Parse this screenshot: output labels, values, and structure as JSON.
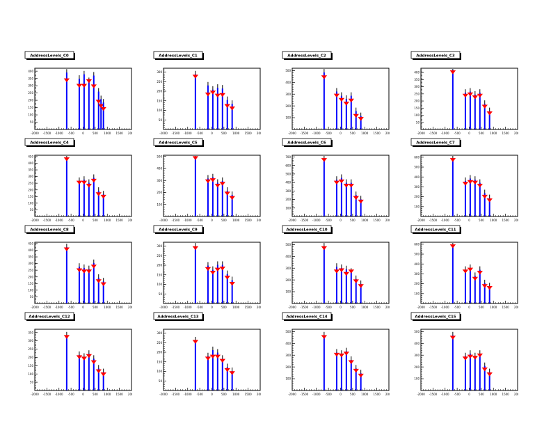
{
  "canvas": {
    "background": "#ffffff"
  },
  "style": {
    "spike_color": "#0000ff",
    "marker_color": "#ff0000",
    "whisker_color": "#000000",
    "frame_color": "#000000",
    "title_fill": "#ffffff",
    "title_shadow": "#000000"
  },
  "axes": {
    "xlim": [
      -2000,
      2000
    ],
    "x_tick_labels": [
      "-2000",
      "-1500",
      "-1000",
      "-500",
      "0",
      "500",
      "1000",
      "1500",
      "2000"
    ]
  },
  "chart_data": [
    {
      "type": "bar",
      "title": "AddressLevels_C0",
      "xlabel": "",
      "ylabel": "",
      "ylim": [
        0,
        420
      ],
      "y_ticks": [
        400,
        350,
        300,
        250,
        200,
        150,
        100,
        50
      ],
      "spikes": [
        {
          "x": -680,
          "y": 390,
          "m": 336
        },
        {
          "x": -160,
          "y": 348,
          "m": 298
        },
        {
          "x": 40,
          "y": 378,
          "m": 298
        },
        {
          "x": 240,
          "y": 332,
          "m": 330
        },
        {
          "x": 440,
          "y": 370,
          "m": 294
        },
        {
          "x": 640,
          "y": 260,
          "m": 189
        },
        {
          "x": 740,
          "y": 208,
          "m": 160
        },
        {
          "x": 840,
          "y": 185,
          "m": 139
        }
      ]
    },
    {
      "type": "bar",
      "title": "AddressLevels_C1",
      "xlabel": "",
      "ylabel": "",
      "ylim": [
        0,
        320
      ],
      "y_ticks": [
        300,
        250,
        200,
        150,
        100,
        50
      ],
      "spikes": [
        {
          "x": -680,
          "y": 288,
          "m": 275
        },
        {
          "x": -160,
          "y": 230,
          "m": 182
        },
        {
          "x": 40,
          "y": 208,
          "m": 192
        },
        {
          "x": 240,
          "y": 218,
          "m": 176
        },
        {
          "x": 440,
          "y": 214,
          "m": 179
        },
        {
          "x": 640,
          "y": 154,
          "m": 122
        },
        {
          "x": 840,
          "y": 134,
          "m": 109
        }
      ]
    },
    {
      "type": "bar",
      "title": "AddressLevels_C2",
      "xlabel": "",
      "ylabel": "",
      "ylim": [
        0,
        520
      ],
      "y_ticks": [
        500,
        400,
        300,
        200,
        100
      ],
      "spikes": [
        {
          "x": -680,
          "y": 484,
          "m": 442
        },
        {
          "x": -160,
          "y": 322,
          "m": 286
        },
        {
          "x": 40,
          "y": 286,
          "m": 250
        },
        {
          "x": 240,
          "y": 260,
          "m": 218
        },
        {
          "x": 440,
          "y": 286,
          "m": 244
        },
        {
          "x": 640,
          "y": 156,
          "m": 114
        },
        {
          "x": 840,
          "y": 114,
          "m": 88
        }
      ]
    },
    {
      "type": "bar",
      "title": "AddressLevels_C3",
      "xlabel": "",
      "ylabel": "",
      "ylim": [
        0,
        430
      ],
      "y_ticks": [
        400,
        350,
        300,
        250,
        200,
        150,
        100,
        50
      ],
      "spikes": [
        {
          "x": -680,
          "y": 417,
          "m": 400
        },
        {
          "x": -160,
          "y": 258,
          "m": 236
        },
        {
          "x": 40,
          "y": 266,
          "m": 245
        },
        {
          "x": 240,
          "y": 245,
          "m": 224
        },
        {
          "x": 440,
          "y": 258,
          "m": 236
        },
        {
          "x": 640,
          "y": 180,
          "m": 159
        },
        {
          "x": 840,
          "y": 129,
          "m": 112
        }
      ]
    },
    {
      "type": "bar",
      "title": "AddressLevels_C4",
      "xlabel": "",
      "ylabel": "",
      "ylim": [
        0,
        460
      ],
      "y_ticks": [
        450,
        400,
        350,
        300,
        250,
        200,
        150,
        100,
        50
      ],
      "spikes": [
        {
          "x": -680,
          "y": 437,
          "m": 428
        },
        {
          "x": -160,
          "y": 267,
          "m": 253
        },
        {
          "x": 40,
          "y": 276,
          "m": 253
        },
        {
          "x": 240,
          "y": 253,
          "m": 230
        },
        {
          "x": 440,
          "y": 290,
          "m": 267
        },
        {
          "x": 640,
          "y": 193,
          "m": 166
        },
        {
          "x": 840,
          "y": 166,
          "m": 147
        }
      ]
    },
    {
      "type": "bar",
      "title": "AddressLevels_C5",
      "xlabel": "",
      "ylabel": "",
      "ylim": [
        0,
        510
      ],
      "y_ticks": [
        500,
        400,
        300,
        200,
        100
      ],
      "spikes": [
        {
          "x": -680,
          "y": 495,
          "m": 485
        },
        {
          "x": -160,
          "y": 316,
          "m": 291
        },
        {
          "x": 40,
          "y": 326,
          "m": 301
        },
        {
          "x": 240,
          "y": 281,
          "m": 255
        },
        {
          "x": 440,
          "y": 296,
          "m": 270
        },
        {
          "x": 640,
          "y": 214,
          "m": 189
        },
        {
          "x": 840,
          "y": 179,
          "m": 153
        }
      ]
    },
    {
      "type": "bar",
      "title": "AddressLevels_C6",
      "xlabel": "",
      "ylabel": "",
      "ylim": [
        0,
        720
      ],
      "y_ticks": [
        700,
        600,
        500,
        400,
        300,
        200,
        100
      ],
      "spikes": [
        {
          "x": -680,
          "y": 684,
          "m": 662
        },
        {
          "x": -160,
          "y": 432,
          "m": 396
        },
        {
          "x": 40,
          "y": 454,
          "m": 410
        },
        {
          "x": 240,
          "y": 396,
          "m": 360
        },
        {
          "x": 440,
          "y": 396,
          "m": 360
        },
        {
          "x": 640,
          "y": 252,
          "m": 216
        },
        {
          "x": 840,
          "y": 202,
          "m": 173
        }
      ]
    },
    {
      "type": "bar",
      "title": "AddressLevels_C7",
      "xlabel": "",
      "ylabel": "",
      "ylim": [
        0,
        620
      ],
      "y_ticks": [
        600,
        500,
        400,
        300,
        200,
        100
      ],
      "spikes": [
        {
          "x": -680,
          "y": 589,
          "m": 570
        },
        {
          "x": -160,
          "y": 360,
          "m": 329
        },
        {
          "x": 40,
          "y": 384,
          "m": 347
        },
        {
          "x": 240,
          "y": 372,
          "m": 341
        },
        {
          "x": 440,
          "y": 341,
          "m": 310
        },
        {
          "x": 640,
          "y": 236,
          "m": 198
        },
        {
          "x": 840,
          "y": 186,
          "m": 161
        }
      ]
    },
    {
      "type": "bar",
      "title": "AddressLevels_C8",
      "xlabel": "",
      "ylabel": "",
      "ylim": [
        0,
        460
      ],
      "y_ticks": [
        450,
        400,
        350,
        300,
        250,
        200,
        150,
        100,
        50
      ],
      "spikes": [
        {
          "x": -680,
          "y": 423,
          "m": 405
        },
        {
          "x": -160,
          "y": 276,
          "m": 248
        },
        {
          "x": 40,
          "y": 267,
          "m": 239
        },
        {
          "x": 240,
          "y": 258,
          "m": 239
        },
        {
          "x": 440,
          "y": 304,
          "m": 276
        },
        {
          "x": 640,
          "y": 193,
          "m": 166
        },
        {
          "x": 840,
          "y": 166,
          "m": 143
        }
      ]
    },
    {
      "type": "bar",
      "title": "AddressLevels_C9",
      "xlabel": "",
      "ylabel": "",
      "ylim": [
        0,
        320
      ],
      "y_ticks": [
        300,
        250,
        200,
        150,
        100,
        50
      ],
      "spikes": [
        {
          "x": -680,
          "y": 298,
          "m": 288
        },
        {
          "x": -160,
          "y": 198,
          "m": 179
        },
        {
          "x": 40,
          "y": 176,
          "m": 160
        },
        {
          "x": 240,
          "y": 202,
          "m": 176
        },
        {
          "x": 440,
          "y": 202,
          "m": 182
        },
        {
          "x": 640,
          "y": 154,
          "m": 134
        },
        {
          "x": 840,
          "y": 122,
          "m": 102
        }
      ]
    },
    {
      "type": "bar",
      "title": "AddressLevels_C10",
      "xlabel": "",
      "ylabel": "",
      "ylim": [
        0,
        520
      ],
      "y_ticks": [
        500,
        400,
        300,
        200,
        100
      ],
      "spikes": [
        {
          "x": -680,
          "y": 484,
          "m": 468
        },
        {
          "x": -160,
          "y": 312,
          "m": 270
        },
        {
          "x": 40,
          "y": 302,
          "m": 281
        },
        {
          "x": 240,
          "y": 291,
          "m": 250
        },
        {
          "x": 440,
          "y": 270,
          "m": 270
        },
        {
          "x": 640,
          "y": 208,
          "m": 187
        },
        {
          "x": 840,
          "y": 166,
          "m": 146
        }
      ]
    },
    {
      "type": "bar",
      "title": "AddressLevels_C11",
      "xlabel": "",
      "ylabel": "",
      "ylim": [
        0,
        620
      ],
      "y_ticks": [
        600,
        500,
        400,
        300,
        200,
        100
      ],
      "spikes": [
        {
          "x": -680,
          "y": 589,
          "m": 577
        },
        {
          "x": -160,
          "y": 341,
          "m": 322
        },
        {
          "x": 40,
          "y": 360,
          "m": 341
        },
        {
          "x": 240,
          "y": 279,
          "m": 248
        },
        {
          "x": 440,
          "y": 341,
          "m": 310
        },
        {
          "x": 640,
          "y": 205,
          "m": 174
        },
        {
          "x": 840,
          "y": 174,
          "m": 155
        }
      ]
    },
    {
      "type": "bar",
      "title": "AddressLevels_C12",
      "xlabel": "",
      "ylabel": "",
      "ylim": [
        0,
        370
      ],
      "y_ticks": [
        350,
        300,
        250,
        200,
        150,
        100,
        50
      ],
      "spikes": [
        {
          "x": -680,
          "y": 333,
          "m": 322
        },
        {
          "x": -160,
          "y": 215,
          "m": 200
        },
        {
          "x": 40,
          "y": 204,
          "m": 192
        },
        {
          "x": 240,
          "y": 222,
          "m": 207
        },
        {
          "x": 440,
          "y": 192,
          "m": 170
        },
        {
          "x": 640,
          "y": 133,
          "m": 115
        },
        {
          "x": 840,
          "y": 111,
          "m": 96
        }
      ]
    },
    {
      "type": "bar",
      "title": "AddressLevels_C13",
      "xlabel": "",
      "ylabel": "",
      "ylim": [
        0,
        320
      ],
      "y_ticks": [
        300,
        250,
        200,
        150,
        100,
        50
      ],
      "spikes": [
        {
          "x": -680,
          "y": 262,
          "m": 253
        },
        {
          "x": -160,
          "y": 179,
          "m": 166
        },
        {
          "x": 40,
          "y": 211,
          "m": 176
        },
        {
          "x": 240,
          "y": 198,
          "m": 176
        },
        {
          "x": 440,
          "y": 166,
          "m": 154
        },
        {
          "x": 640,
          "y": 122,
          "m": 106
        },
        {
          "x": 840,
          "y": 102,
          "m": 90
        }
      ]
    },
    {
      "type": "bar",
      "title": "AddressLevels_C14",
      "xlabel": "",
      "ylabel": "",
      "ylim": [
        0,
        520
      ],
      "y_ticks": [
        500,
        400,
        300,
        200,
        100
      ],
      "spikes": [
        {
          "x": -680,
          "y": 468,
          "m": 452
        },
        {
          "x": -160,
          "y": 322,
          "m": 302
        },
        {
          "x": 40,
          "y": 312,
          "m": 296
        },
        {
          "x": 240,
          "y": 333,
          "m": 312
        },
        {
          "x": 440,
          "y": 260,
          "m": 239
        },
        {
          "x": 640,
          "y": 187,
          "m": 166
        },
        {
          "x": 840,
          "y": 146,
          "m": 125
        }
      ]
    },
    {
      "type": "bar",
      "title": "AddressLevels_C15",
      "xlabel": "",
      "ylabel": "",
      "ylim": [
        0,
        520
      ],
      "y_ticks": [
        500,
        400,
        300,
        200,
        100
      ],
      "spikes": [
        {
          "x": -680,
          "y": 468,
          "m": 447
        },
        {
          "x": -160,
          "y": 291,
          "m": 270
        },
        {
          "x": 40,
          "y": 312,
          "m": 286
        },
        {
          "x": 240,
          "y": 291,
          "m": 276
        },
        {
          "x": 440,
          "y": 312,
          "m": 296
        },
        {
          "x": 640,
          "y": 208,
          "m": 177
        },
        {
          "x": 840,
          "y": 156,
          "m": 135
        }
      ]
    }
  ]
}
